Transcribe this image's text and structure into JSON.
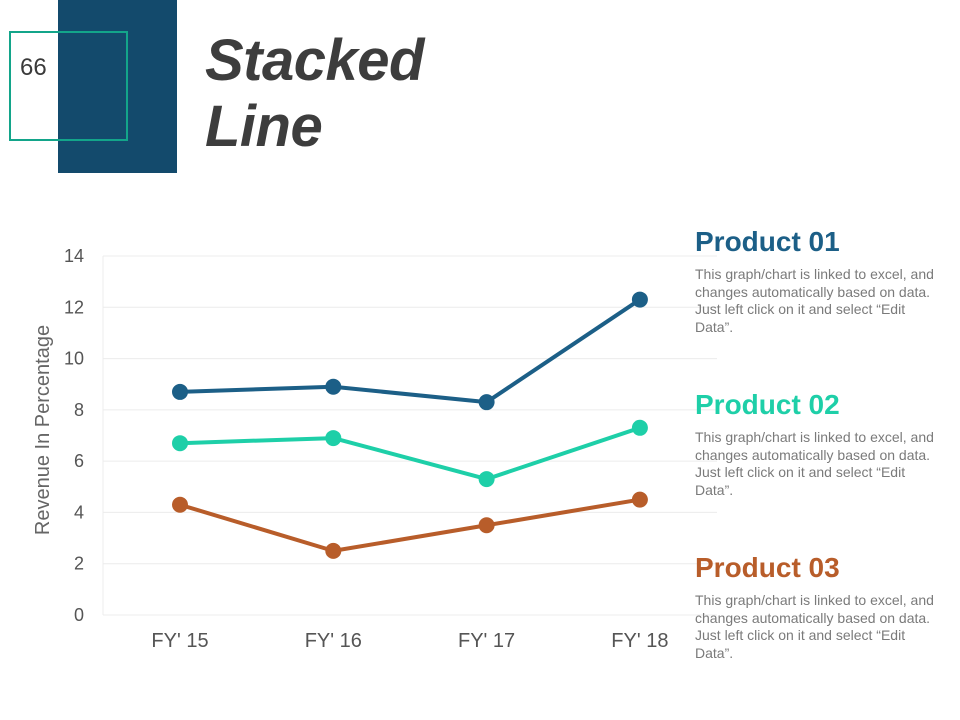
{
  "slide": {
    "number": "66",
    "title": "Stacked\nLine"
  },
  "colors": {
    "navy": "#134a6c",
    "teal_frame": "#13a58a",
    "product_01": "#1c5f87",
    "product_02": "#1ecfa8",
    "product_03": "#b85d2a"
  },
  "chart_data": {
    "type": "line",
    "title": "",
    "ylabel": "Revenue In Percentage",
    "xlabel": "",
    "ylim": [
      0,
      14
    ],
    "yticks": [
      0,
      2,
      4,
      6,
      8,
      10,
      12,
      14
    ],
    "grid": true,
    "categories": [
      "FY' 15",
      "FY' 16",
      "FY' 17",
      "FY' 18"
    ],
    "series": [
      {
        "name": "Product 01",
        "values": [
          8.7,
          8.9,
          8.3,
          12.3
        ]
      },
      {
        "name": "Product 02",
        "values": [
          6.7,
          6.9,
          5.3,
          7.3
        ]
      },
      {
        "name": "Product 03",
        "values": [
          4.3,
          2.5,
          3.5,
          4.5
        ]
      }
    ]
  },
  "legend": [
    {
      "name": "Product 01",
      "color": "#1c5f87",
      "description": "This graph/chart is linked to excel, and changes automatically based on data. Just left click on it and select “Edit Data”."
    },
    {
      "name": "Product 02",
      "color": "#1ecfa8",
      "description": "This graph/chart is linked to excel, and changes automatically based on data. Just left click on it and select “Edit Data”."
    },
    {
      "name": "Product 03",
      "color": "#b85d2a",
      "description": "This graph/chart is linked to excel, and changes automatically based on data. Just left click on it and select “Edit Data”."
    }
  ]
}
